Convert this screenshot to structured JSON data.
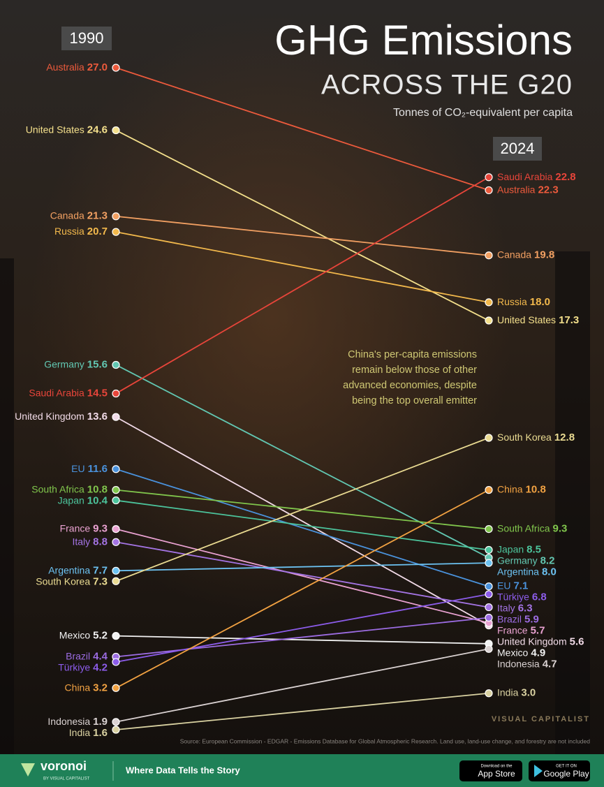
{
  "chart_data": {
    "type": "slope",
    "title": "GHG Emissions",
    "subtitle": "ACROSS THE G20",
    "unit_label": "Tonnes of CO₂-equivalent per capita",
    "categories": [
      "1990",
      "2024"
    ],
    "annotation": [
      "China's per-capita emissions",
      "remain below those of other",
      "advanced economies, despite",
      "being the top overall emitter"
    ],
    "source": "Source: European Commission - EDGAR - Emissions Database for Global Atmospheric Research. Land use, land-use change, and forestry are not included",
    "series": [
      {
        "name": "Australia",
        "color": "#ec5a3c",
        "values": [
          27.0,
          22.3
        ],
        "value_labels": [
          "27.0",
          "22.3"
        ]
      },
      {
        "name": "United States",
        "color": "#f4e08c",
        "values": [
          24.6,
          17.3
        ]
      },
      {
        "name": "Canada",
        "color": "#f2a062",
        "values": [
          21.3,
          19.8
        ]
      },
      {
        "name": "Russia",
        "color": "#f3b94c",
        "values": [
          20.7,
          18.0
        ],
        "value_labels": [
          "20.7",
          "18.0"
        ]
      },
      {
        "name": "Germany",
        "color": "#62c7b2",
        "values": [
          15.6,
          8.2
        ]
      },
      {
        "name": "Saudi Arabia",
        "color": "#e8453a",
        "values": [
          14.5,
          22.8
        ]
      },
      {
        "name": "United Kingdom",
        "color": "#f2dbe8",
        "values": [
          13.6,
          5.6
        ]
      },
      {
        "name": "EU",
        "color": "#4a92dc",
        "values": [
          11.6,
          7.1
        ]
      },
      {
        "name": "South Africa",
        "color": "#80c54c",
        "values": [
          10.8,
          9.3
        ]
      },
      {
        "name": "Japan",
        "color": "#4cc49c",
        "values": [
          10.4,
          8.5
        ]
      },
      {
        "name": "France",
        "color": "#eaa2d2",
        "values": [
          9.3,
          5.7
        ]
      },
      {
        "name": "Italy",
        "color": "#a474e4",
        "values": [
          8.8,
          6.3
        ]
      },
      {
        "name": "Argentina",
        "color": "#6cc2f2",
        "values": [
          7.7,
          8.0
        ],
        "value_labels": [
          "7.7",
          "8.0"
        ]
      },
      {
        "name": "South Korea",
        "color": "#eadb92",
        "values": [
          7.3,
          12.8
        ]
      },
      {
        "name": "Mexico",
        "color": "#f2f2f2",
        "values": [
          5.2,
          4.9
        ]
      },
      {
        "name": "Brazil",
        "color": "#9c6ce2",
        "values": [
          4.4,
          5.9
        ]
      },
      {
        "name": "Türkiye",
        "color": "#8c5cea",
        "values": [
          4.2,
          6.8
        ]
      },
      {
        "name": "China",
        "color": "#f2a242",
        "values": [
          3.2,
          10.8
        ]
      },
      {
        "name": "Indonesia",
        "color": "#dad2d2",
        "values": [
          1.9,
          4.7
        ]
      },
      {
        "name": "India",
        "color": "#dad2a2",
        "values": [
          1.6,
          3.0
        ],
        "value_labels": [
          "1.6",
          "3.0"
        ]
      }
    ]
  },
  "brand": {
    "logo": "VISUAL CAPITALIST"
  },
  "footer": {
    "name": "voronoi",
    "by": "BY VISUAL CAPITALIST",
    "tagline": "Where Data Tells the Story",
    "app_store": {
      "small": "Download on the",
      "big": "App Store"
    },
    "google_play": {
      "small": "GET IT ON",
      "big": "Google Play"
    }
  }
}
